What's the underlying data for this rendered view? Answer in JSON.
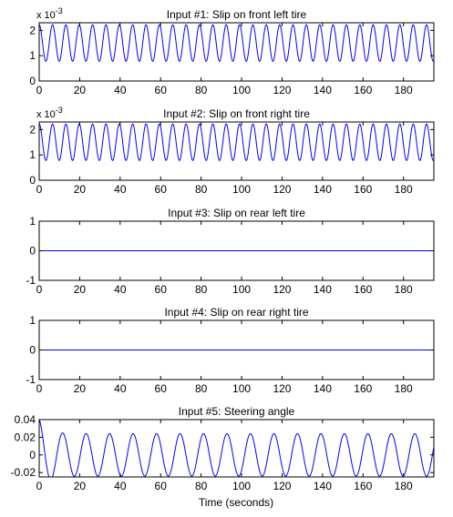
{
  "colors": {
    "line": "#0000ff",
    "axes": "#000000",
    "background": "#ffffff"
  },
  "xlabel": "Time (seconds)",
  "chart_data": [
    {
      "type": "line",
      "title": "Input #1: Slip on front left tire",
      "exponent_label": "x 10",
      "exponent_power": "-3",
      "xlim": [
        0,
        195
      ],
      "ylim": [
        0,
        2.3
      ],
      "xticks": [
        0,
        20,
        40,
        60,
        80,
        100,
        120,
        140,
        160,
        180
      ],
      "xtick_labels": [
        "0",
        "20",
        "40",
        "60",
        "80",
        "100",
        "120",
        "140",
        "160",
        "180"
      ],
      "yticks": [
        0,
        1,
        2
      ],
      "ytick_labels": [
        "0",
        "1",
        "2"
      ],
      "signal": {
        "kind": "sine",
        "offset": 1.5,
        "amplitude": 0.72,
        "period": 6.6,
        "phase_deg": 90,
        "unit_scale": 0.001
      }
    },
    {
      "type": "line",
      "title": "Input #2: Slip on front right tire",
      "exponent_label": "x 10",
      "exponent_power": "-3",
      "xlim": [
        0,
        195
      ],
      "ylim": [
        0,
        2.3
      ],
      "xticks": [
        0,
        20,
        40,
        60,
        80,
        100,
        120,
        140,
        160,
        180
      ],
      "xtick_labels": [
        "0",
        "20",
        "40",
        "60",
        "80",
        "100",
        "120",
        "140",
        "160",
        "180"
      ],
      "yticks": [
        0,
        1,
        2
      ],
      "ytick_labels": [
        "0",
        "1",
        "2"
      ],
      "signal": {
        "kind": "sine",
        "offset": 1.5,
        "amplitude": 0.72,
        "period": 6.6,
        "phase_deg": 90,
        "unit_scale": 0.001
      }
    },
    {
      "type": "line",
      "title": "Input #3: Slip on rear left tire",
      "exponent_label": "",
      "exponent_power": "",
      "xlim": [
        0,
        195
      ],
      "ylim": [
        -1,
        1
      ],
      "xticks": [
        0,
        20,
        40,
        60,
        80,
        100,
        120,
        140,
        160,
        180
      ],
      "xtick_labels": [
        "0",
        "20",
        "40",
        "60",
        "80",
        "100",
        "120",
        "140",
        "160",
        "180"
      ],
      "yticks": [
        -1,
        0,
        1
      ],
      "ytick_labels": [
        "-1",
        "0",
        "1"
      ],
      "signal": {
        "kind": "constant",
        "offset": 0,
        "amplitude": 0,
        "period": 1,
        "phase_deg": 0,
        "unit_scale": 1
      }
    },
    {
      "type": "line",
      "title": "Input #4: Slip on rear right tire",
      "exponent_label": "",
      "exponent_power": "",
      "xlim": [
        0,
        195
      ],
      "ylim": [
        -1,
        1
      ],
      "xticks": [
        0,
        20,
        40,
        60,
        80,
        100,
        120,
        140,
        160,
        180
      ],
      "xtick_labels": [
        "0",
        "20",
        "40",
        "60",
        "80",
        "100",
        "120",
        "140",
        "160",
        "180"
      ],
      "yticks": [
        -1,
        0,
        1
      ],
      "ytick_labels": [
        "-1",
        "0",
        "1"
      ],
      "signal": {
        "kind": "constant",
        "offset": 0,
        "amplitude": 0,
        "period": 1,
        "phase_deg": 0,
        "unit_scale": 1
      }
    },
    {
      "type": "line",
      "title": "Input #5: Steering angle",
      "exponent_label": "",
      "exponent_power": "",
      "xlim": [
        0,
        195
      ],
      "ylim": [
        -0.025,
        0.04
      ],
      "xticks": [
        0,
        20,
        40,
        60,
        80,
        100,
        120,
        140,
        160,
        180
      ],
      "xtick_labels": [
        "0",
        "20",
        "40",
        "60",
        "80",
        "100",
        "120",
        "140",
        "160",
        "180"
      ],
      "yticks": [
        -0.02,
        0,
        0.02,
        0.04
      ],
      "ytick_labels": [
        "-0.02",
        "0",
        "0.02",
        "0.04"
      ],
      "signal": {
        "kind": "decaying_sine",
        "offset": 0,
        "amplitude": 0.024,
        "period": 11.6,
        "phase_deg": 90,
        "unit_scale": 1,
        "initial_peak": 0.04,
        "decay_time": 4
      }
    }
  ]
}
